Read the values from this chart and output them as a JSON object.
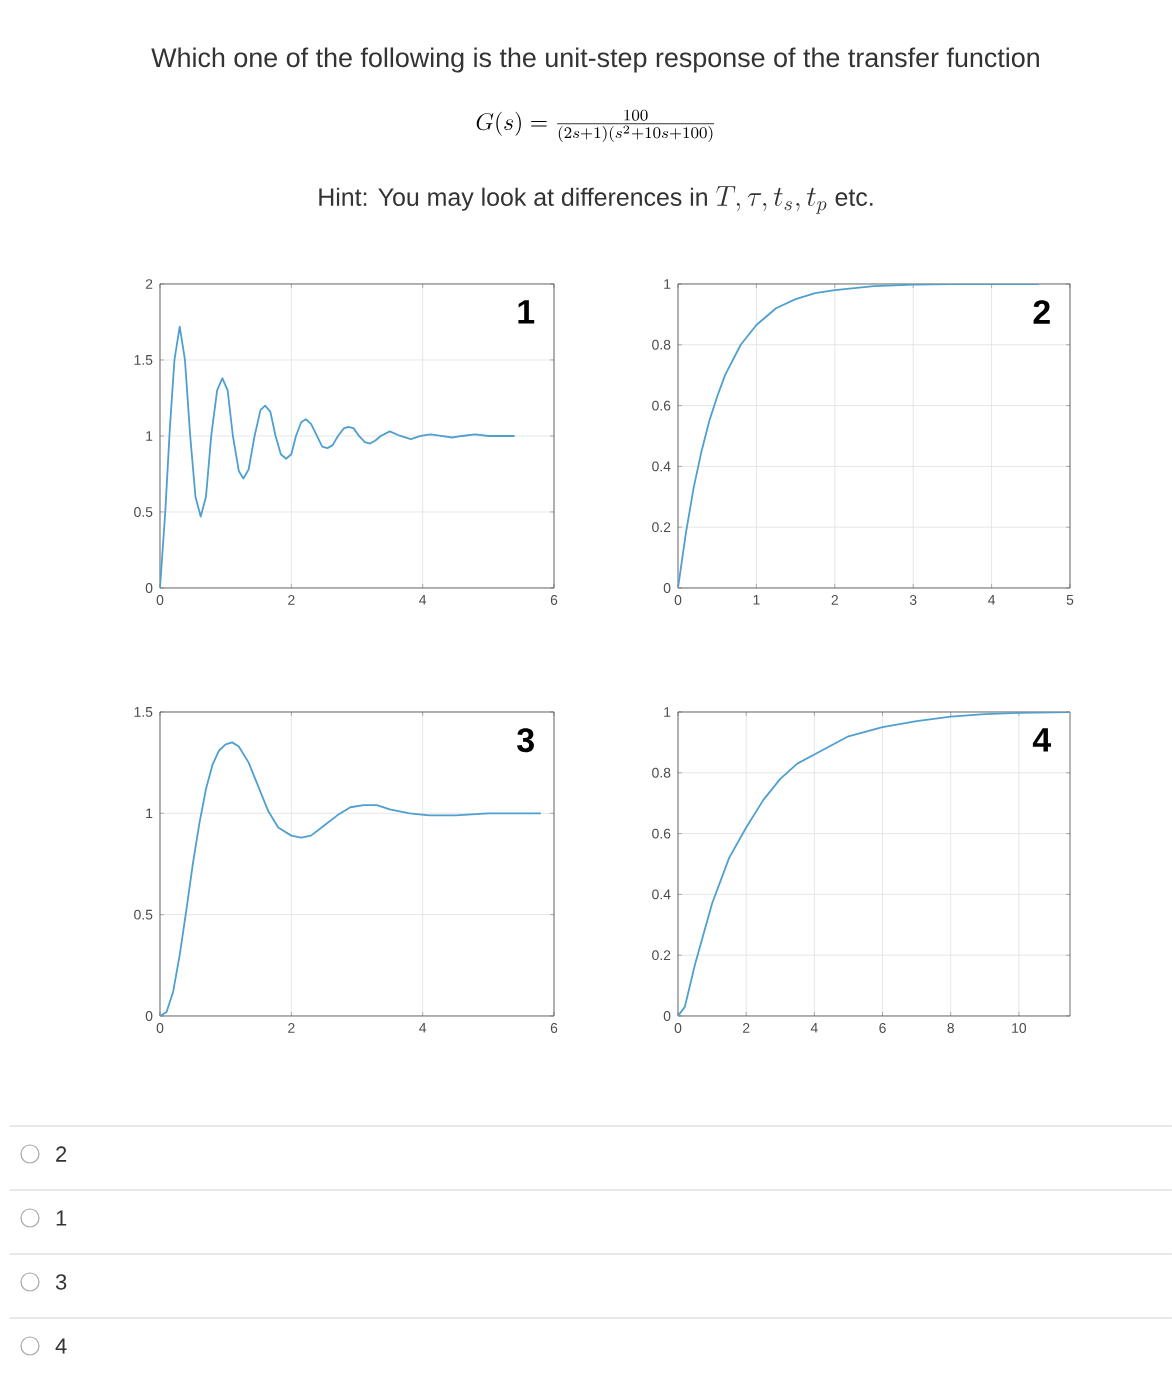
{
  "chart_data": [
    {
      "type": "other",
      "title": "Which one of the following is the unit-step response of the transfer function",
      "subtitle": "G(s) = \\frac{100}{(2s+1)(s^2+10s+100)}",
      "annotations": [
        "Hint: You may look at differences in",
        "T, \\tau, t_s, t_p",
        "etc.",
        "2",
        "1",
        "3",
        "4"
      ]
    },
    {
      "type": "line",
      "xlim": [
        0,
        6
      ],
      "xticks": [
        0,
        2,
        4,
        6
      ],
      "ylim": [
        0,
        2
      ],
      "yticks": [
        0,
        0.5,
        1,
        1.5,
        2
      ],
      "grid": true,
      "annotations": [
        "1"
      ],
      "color": "#4f9fcf",
      "x": [
        0,
        0.08,
        0.15,
        0.22,
        0.3,
        0.38,
        0.46,
        0.54,
        0.62,
        0.7,
        0.78,
        0.87,
        0.95,
        1.03,
        1.11,
        1.2,
        1.27,
        1.35,
        1.44,
        1.53,
        1.6,
        1.68,
        1.76,
        1.84,
        1.92,
        2.0,
        2.07,
        2.15,
        2.22,
        2.3,
        2.39,
        2.47,
        2.55,
        2.63,
        2.71,
        2.8,
        2.87,
        2.95,
        3.03,
        3.12,
        3.2,
        3.28,
        3.36,
        3.5,
        3.66,
        3.82,
        3.97,
        4.12,
        4.28,
        4.45,
        4.6,
        4.8,
        5.0,
        5.15,
        5.4
      ],
      "values": [
        0,
        0.5,
        1.05,
        1.5,
        1.72,
        1.5,
        1.0,
        0.6,
        0.47,
        0.6,
        1.0,
        1.3,
        1.38,
        1.3,
        1.0,
        0.77,
        0.72,
        0.78,
        1.0,
        1.17,
        1.2,
        1.16,
        1.0,
        0.88,
        0.85,
        0.88,
        1.0,
        1.09,
        1.11,
        1.08,
        1.0,
        0.93,
        0.92,
        0.94,
        1.0,
        1.05,
        1.06,
        1.05,
        1.0,
        0.96,
        0.95,
        0.97,
        1.0,
        1.03,
        1.0,
        0.98,
        1.0,
        1.01,
        1.0,
        0.99,
        1.0,
        1.01,
        1.0,
        1.0,
        1.0
      ]
    },
    {
      "type": "line",
      "xlim": [
        0,
        5
      ],
      "xticks": [
        0,
        1,
        2,
        3,
        4,
        5
      ],
      "ylim": [
        0,
        1
      ],
      "yticks": [
        0,
        0.2,
        0.4,
        0.6,
        0.8,
        1
      ],
      "grid": true,
      "annotations": [
        "2"
      ],
      "color": "#4f9fcf",
      "x": [
        0,
        0.1,
        0.2,
        0.3,
        0.4,
        0.5,
        0.6,
        0.8,
        1.0,
        1.25,
        1.5,
        1.75,
        2.0,
        2.5,
        3.0,
        3.5,
        4.6
      ],
      "values": [
        0,
        0.18,
        0.33,
        0.45,
        0.55,
        0.63,
        0.7,
        0.8,
        0.865,
        0.92,
        0.95,
        0.97,
        0.98,
        0.993,
        0.998,
        1,
        1
      ]
    },
    {
      "type": "line",
      "xlim": [
        0,
        6
      ],
      "xticks": [
        0,
        2,
        4,
        6
      ],
      "ylim": [
        0,
        1.5
      ],
      "yticks": [
        0,
        0.5,
        1,
        1.5
      ],
      "grid": true,
      "annotations": [
        "3"
      ],
      "color": "#4f9fcf",
      "x": [
        0,
        0.1,
        0.2,
        0.3,
        0.4,
        0.5,
        0.6,
        0.7,
        0.8,
        0.9,
        1.0,
        1.1,
        1.2,
        1.35,
        1.5,
        1.65,
        1.8,
        2.0,
        2.15,
        2.3,
        2.5,
        2.7,
        2.9,
        3.1,
        3.3,
        3.5,
        3.8,
        4.1,
        4.5,
        5.0,
        5.8
      ],
      "values": [
        0,
        0.02,
        0.12,
        0.3,
        0.52,
        0.75,
        0.95,
        1.12,
        1.24,
        1.31,
        1.34,
        1.35,
        1.33,
        1.25,
        1.13,
        1.01,
        0.93,
        0.89,
        0.88,
        0.89,
        0.94,
        0.99,
        1.03,
        1.04,
        1.04,
        1.02,
        1.0,
        0.99,
        0.99,
        1.0,
        1.0
      ]
    },
    {
      "type": "line",
      "xlim": [
        0,
        11.5
      ],
      "xticks": [
        0,
        2,
        4,
        6,
        8,
        10
      ],
      "ylim": [
        0,
        1
      ],
      "yticks": [
        0,
        0.2,
        0.4,
        0.6,
        0.8,
        1
      ],
      "grid": true,
      "annotations": [
        "4"
      ],
      "color": "#4f9fcf",
      "x": [
        0,
        0.2,
        0.5,
        1,
        1.5,
        2,
        2.5,
        3,
        3.5,
        4,
        5,
        6,
        7,
        8,
        9,
        10,
        11.5
      ],
      "values": [
        0,
        0.03,
        0.17,
        0.37,
        0.52,
        0.62,
        0.71,
        0.78,
        0.83,
        0.86,
        0.92,
        0.95,
        0.97,
        0.985,
        0.993,
        0.997,
        1.0
      ]
    }
  ]
}
